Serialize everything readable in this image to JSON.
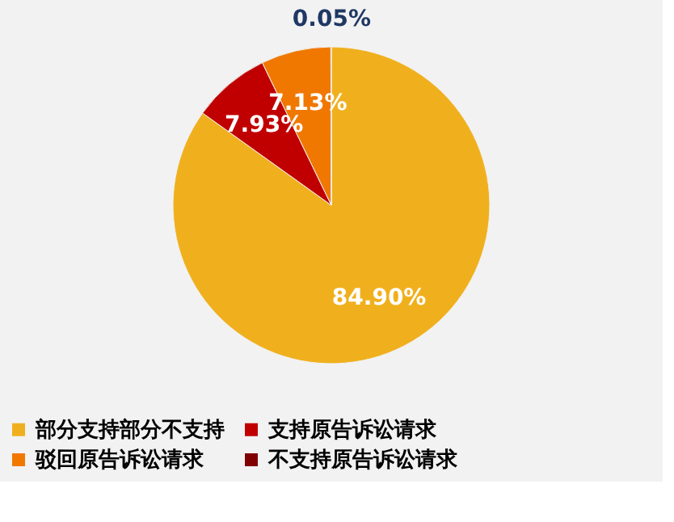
{
  "chart_data": {
    "type": "pie",
    "categories": [
      "部分支持部分不支持",
      "支持原告诉讼请求",
      "驳回原告诉讼请求",
      "不支持原告诉讼请求"
    ],
    "values": [
      84.9,
      7.93,
      7.13,
      0.05
    ],
    "value_labels": [
      "84.90%",
      "7.93%",
      "7.13%",
      "0.05%"
    ],
    "colors": [
      "#f0b01e",
      "#c00000",
      "#f07800",
      "#7f0000"
    ],
    "legend": "bottom"
  }
}
